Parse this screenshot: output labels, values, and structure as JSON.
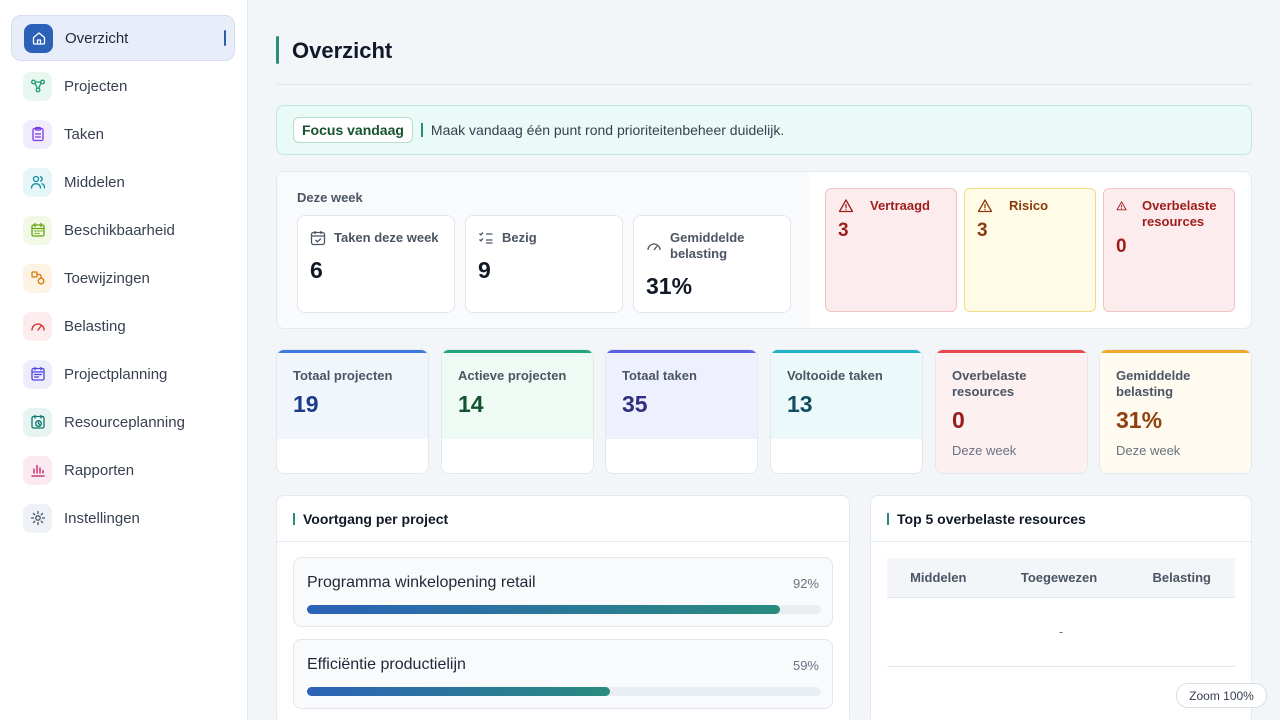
{
  "sidebar": {
    "items": [
      {
        "label": "Overzicht",
        "icon": "home-icon",
        "color": "#2b62b8",
        "bg": "#2b62b8"
      },
      {
        "label": "Projecten",
        "icon": "nodes-icon",
        "color": "#1f9d72",
        "bg": "#e8f7f0"
      },
      {
        "label": "Taken",
        "icon": "clipboard-icon",
        "color": "#7c3aed",
        "bg": "#f1ecfd"
      },
      {
        "label": "Middelen",
        "icon": "users-icon",
        "color": "#0f8f9c",
        "bg": "#e6f6f8"
      },
      {
        "label": "Beschikbaarheid",
        "icon": "calendar-icon",
        "color": "#65a30d",
        "bg": "#f2f8e6"
      },
      {
        "label": "Toewijzingen",
        "icon": "assign-icon",
        "color": "#d97706",
        "bg": "#fdf3e4"
      },
      {
        "label": "Belasting",
        "icon": "gauge-icon",
        "color": "#dc2626",
        "bg": "#fdeced"
      },
      {
        "label": "Projectplanning",
        "icon": "planning-icon",
        "color": "#4f46e5",
        "bg": "#eeedfc"
      },
      {
        "label": "Resourceplanning",
        "icon": "resource-clock-icon",
        "color": "#0f766e",
        "bg": "#e6f4f2"
      },
      {
        "label": "Rapporten",
        "icon": "bar-chart-icon",
        "color": "#be185d",
        "bg": "#fceaf1"
      },
      {
        "label": "Instellingen",
        "icon": "gear-icon",
        "color": "#475569",
        "bg": "#eef1f5"
      }
    ]
  },
  "header": {
    "title": "Overzicht"
  },
  "focus": {
    "tag": "Focus vandaag",
    "text": "Maak vandaag één punt rond prioriteitenbeheer duidelijk."
  },
  "week": {
    "title": "Deze week",
    "cards": [
      {
        "label": "Taken deze week",
        "value": "6",
        "icon": "calendar-check-icon"
      },
      {
        "label": "Bezig",
        "value": "9",
        "icon": "checklist-icon"
      },
      {
        "label": "Gemiddelde belasting",
        "value": "31%",
        "icon": "gauge-icon"
      }
    ],
    "alerts": [
      {
        "label": "Vertraagd",
        "value": "3",
        "icon": "warning-icon",
        "bg": "#fdeced",
        "border": "#f5c2c4",
        "color": "#9f1d1d"
      },
      {
        "label": "Risico",
        "value": "3",
        "icon": "warning-icon",
        "bg": "#fffbe6",
        "border": "#f3dc86",
        "color": "#8a3b10"
      },
      {
        "label": "Overbelaste resources",
        "value": "0",
        "icon": "warning-icon",
        "bg": "#fdeced",
        "border": "#f5c2c4",
        "color": "#9f1d1d"
      }
    ]
  },
  "kpis": [
    {
      "label": "Totaal projecten",
      "value": "19",
      "sub": "",
      "accent": "#3b7be0",
      "bg": "#f1f6fd",
      "color": "#1e3a8a"
    },
    {
      "label": "Actieve projecten",
      "value": "14",
      "sub": "",
      "accent": "#22a77a",
      "bg": "#eefaf4",
      "color": "#14532d"
    },
    {
      "label": "Totaal taken",
      "value": "35",
      "sub": "",
      "accent": "#5b5fe0",
      "bg": "#eff0fd",
      "color": "#312e81"
    },
    {
      "label": "Voltooide taken",
      "value": "13",
      "sub": "",
      "accent": "#1fb3c6",
      "bg": "#ebf9fb",
      "color": "#134e5e"
    },
    {
      "label": "Overbelaste resources",
      "value": "0",
      "sub": "Deze week",
      "accent": "#e5484d",
      "bg": "#fdf0f1",
      "color": "#991b1b"
    },
    {
      "label": "Gemiddelde belasting",
      "value": "31%",
      "sub": "Deze week",
      "accent": "#f0a92b",
      "bg": "#fffbf0",
      "color": "#92400e"
    }
  ],
  "progress": {
    "title": "Voortgang per project",
    "items": [
      {
        "name": "Programma winkelopening retail",
        "pct_label": "92%",
        "pct": 92
      },
      {
        "name": "Efficiëntie productielijn",
        "pct_label": "59%",
        "pct": 59
      }
    ]
  },
  "overload": {
    "title": "Top 5 overbelaste resources",
    "columns": [
      "Middelen",
      "Toegewezen",
      "Belasting"
    ],
    "empty": "-"
  },
  "zoom": {
    "label": "Zoom 100%"
  }
}
